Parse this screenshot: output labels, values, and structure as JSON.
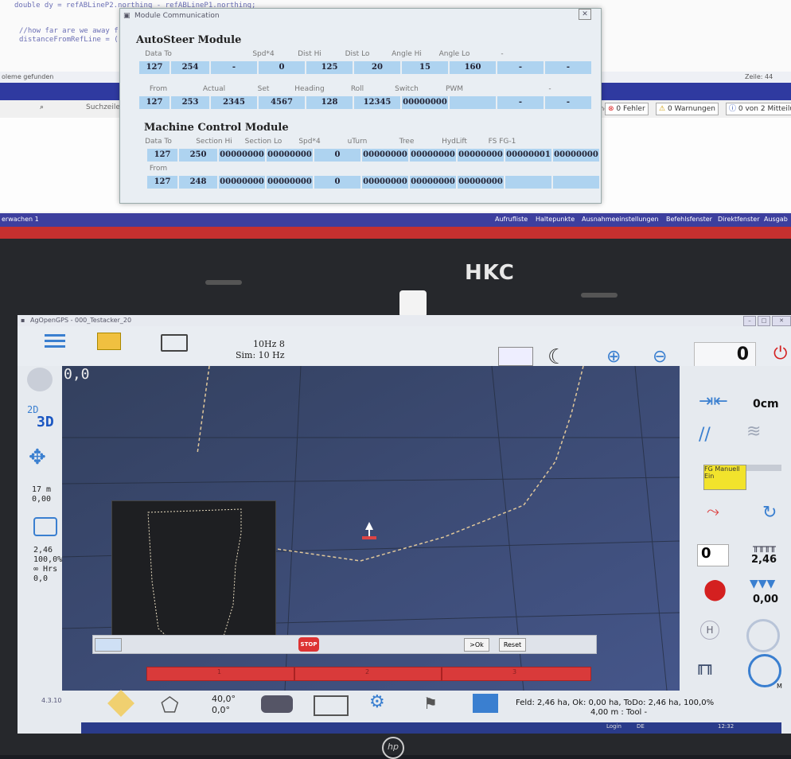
{
  "code": {
    "line1": "double dy = refABLineP2.northing - refABLineP1.northing;",
    "line2": "//how far are we away fr",
    "line3": "distanceFromRefLine = ((",
    "status_left": "oleme gefunden",
    "status_right": "Zeile: 44"
  },
  "vs_toolbar": {
    "search_label": "Suchzeile",
    "errors": "0 Fehler",
    "warnings": "0 Warnungen",
    "messages": "0 von 2 Mitteilu",
    "side_text": "bung"
  },
  "vs_tabs": {
    "left": "erwachen 1",
    "items": [
      "Aufrufliste",
      "Haltepunkte",
      "Ausnahmeeinstellungen",
      "Befehlsfenster",
      "Direktfenster",
      "Ausgab"
    ]
  },
  "dialog": {
    "title": "Module Communication",
    "autosteer_title": "AutoSteer Module",
    "as_data_labels": [
      "Data To",
      "",
      "Spd*4",
      "Dist Hi",
      "Dist Lo",
      "Angle Hi",
      "Angle Lo",
      "-",
      ""
    ],
    "as_data_values": [
      "127",
      "254",
      "-",
      "0",
      "125",
      "20",
      "15",
      "160",
      "-",
      "-"
    ],
    "as_from_labels": [
      "From",
      "Actual",
      "Set",
      "Heading",
      "Roll",
      "Switch",
      "PWM",
      "",
      "-"
    ],
    "as_from_values": [
      "127",
      "253",
      "2345",
      "4567",
      "128",
      "12345",
      "00000000",
      "",
      "-",
      "-"
    ],
    "machine_title": "Machine Control Module",
    "mc_data_labels": [
      "Data To",
      "Section Hi",
      "Section Lo",
      "Spd*4",
      "uTurn",
      "Tree",
      "HydLift",
      "FS FG-1",
      ""
    ],
    "mc_data_values": [
      "127",
      "250",
      "00000000",
      "00000000",
      "0",
      "00000000",
      "00000000",
      "00000000",
      "00000001",
      "00000000"
    ],
    "mc_from_labels": [
      "From",
      "",
      "",
      "",
      "",
      "",
      "",
      ""
    ],
    "mc_from_values": [
      "127",
      "248",
      "00000000",
      "00000000",
      "0",
      "00000000",
      "00000000",
      "00000000",
      "",
      ""
    ]
  },
  "laptop": {
    "brand": "HKC",
    "hp": "hp"
  },
  "aog": {
    "window_title": "AgOpenGPS - 000_Testacker_20",
    "hz": "10Hz 8",
    "sim": "Sim: 10 Hz",
    "speed": "0",
    "coords": "0,0",
    "view2d": "2D",
    "view3d": "3D",
    "dist": "17 m",
    "dist2": "0,00",
    "area1": "2,46",
    "area2": "100,0%",
    "area3": "∞ Hrs",
    "area4": "0,0",
    "offset": "0cm",
    "fg_button": "FG Manuell Ein",
    "counter": "0",
    "tool_width": "2,46",
    "tool_value": "0,00",
    "hotkey": "H",
    "angle1": "40,0°",
    "angle2": "0,0°",
    "version": "4.3.10",
    "status_line1": "Feld: 2,46 ha, Ok: 0,00 ha,  ToDo: 2,46 ha,  100,0%",
    "status_line2": "4,00 m  : Tool -",
    "stop": "STOP",
    "ok": ">Ok",
    "reset": "Reset",
    "section_labels": [
      "1",
      "2",
      "3"
    ],
    "taskbar_login": "Login",
    "taskbar_lang": "DE",
    "taskbar_time": "12:32",
    "m_label": "M"
  },
  "colors": {
    "vs_blue": "#2f3aa0",
    "cell_blue": "#aed3f0",
    "section_red": "#d93a3a",
    "power_red": "#d42020",
    "fg_yellow": "#f2e32c"
  }
}
